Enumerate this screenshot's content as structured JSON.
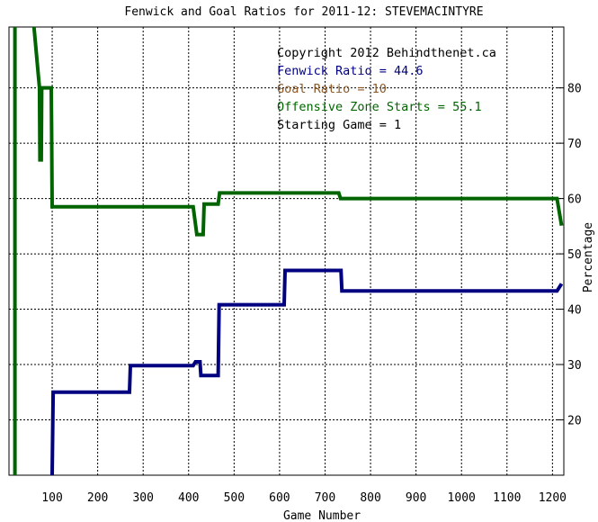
{
  "chart_data": {
    "type": "line",
    "title": "Fenwick and Goal Ratios for 2011-12: STEVEMACINTYRE",
    "xlabel": "Game Number",
    "ylabel": "Percentage",
    "xlim": [
      5,
      1225
    ],
    "ylim": [
      10,
      91
    ],
    "x_ticks": [
      100,
      200,
      300,
      400,
      500,
      600,
      700,
      800,
      900,
      1000,
      1100,
      1200
    ],
    "y_ticks": [
      20,
      30,
      40,
      50,
      60,
      70,
      80
    ],
    "grid": true,
    "annotations": [
      {
        "text": "Copyright 2012 Behindthenet.ca",
        "color": "#000000"
      },
      {
        "text": "Fenwick Ratio = 44.6",
        "color": "#000080"
      },
      {
        "text": "Goal Ratio = 10",
        "color": "#8B5A2B"
      },
      {
        "text": "Offensive Zone Starts = 55.1",
        "color": "#006400"
      },
      {
        "text": "Starting Game = 1",
        "color": "#000000"
      }
    ],
    "series": [
      {
        "color": "#000080",
        "points": [
          [
            100,
            10
          ],
          [
            102,
            25
          ],
          [
            270,
            25
          ],
          [
            272,
            29.8
          ],
          [
            410,
            29.8
          ],
          [
            415,
            30.5
          ],
          [
            425,
            30.5
          ],
          [
            427,
            28
          ],
          [
            465,
            28
          ],
          [
            467,
            40.8
          ],
          [
            610,
            40.8
          ],
          [
            612,
            47
          ],
          [
            735,
            47
          ],
          [
            737,
            43.3
          ],
          [
            1210,
            43.3
          ],
          [
            1220,
            44.6
          ]
        ]
      },
      {
        "color": "#006400",
        "points": [
          [
            60,
            91
          ],
          [
            72,
            80
          ],
          [
            73,
            67
          ],
          [
            76,
            67
          ],
          [
            77,
            80
          ],
          [
            98,
            80
          ],
          [
            99,
            70
          ],
          [
            100,
            58.5
          ],
          [
            410,
            58.5
          ],
          [
            418,
            53.5
          ],
          [
            432,
            53.5
          ],
          [
            434,
            59
          ],
          [
            465,
            59
          ],
          [
            468,
            61
          ],
          [
            730,
            61
          ],
          [
            734,
            60
          ],
          [
            1210,
            60
          ],
          [
            1220,
            55.1
          ]
        ]
      },
      {
        "color": "#006400",
        "points": [
          [
            18,
            10
          ],
          [
            18,
            91
          ]
        ]
      }
    ]
  }
}
